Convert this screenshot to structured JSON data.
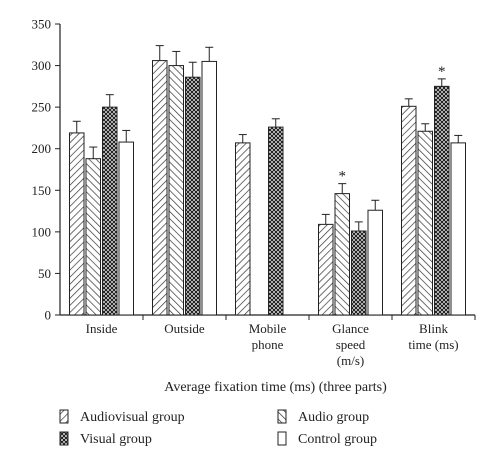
{
  "chart_data": {
    "type": "bar",
    "xlabel": "Average fixation time (ms) (three parts)",
    "ylabel": "",
    "ylim": [
      0,
      350
    ],
    "yticks": [
      0,
      50,
      100,
      150,
      200,
      250,
      300,
      350
    ],
    "grid": false,
    "legend_position": "bottom",
    "categories": [
      [
        "Inside"
      ],
      [
        "Outside"
      ],
      [
        "Mobile",
        "phone"
      ],
      [
        "Glance",
        "speed",
        "(m/s)"
      ],
      [
        "Blink",
        "time (ms)"
      ]
    ],
    "series": [
      {
        "name": "Audiovisual group",
        "pattern": "diag-right",
        "values": [
          219,
          306,
          207,
          109,
          251
        ],
        "errors": [
          14,
          18,
          10,
          12,
          9
        ]
      },
      {
        "name": "Audio group",
        "pattern": "diag-left",
        "values": [
          188,
          300,
          0,
          146,
          221
        ],
        "errors": [
          14,
          17,
          0,
          12,
          9
        ]
      },
      {
        "name": "Visual group",
        "pattern": "crosshatch",
        "values": [
          250,
          286,
          226,
          101,
          275
        ],
        "errors": [
          15,
          18,
          10,
          11,
          9
        ]
      },
      {
        "name": "Control group",
        "pattern": "none",
        "values": [
          208,
          305,
          0,
          126,
          207
        ],
        "errors": [
          14,
          17,
          0,
          12,
          9
        ]
      }
    ],
    "annotations": [
      {
        "text": "*",
        "category": 3,
        "series": 1
      },
      {
        "text": "*",
        "category": 4,
        "series": 2
      }
    ]
  }
}
